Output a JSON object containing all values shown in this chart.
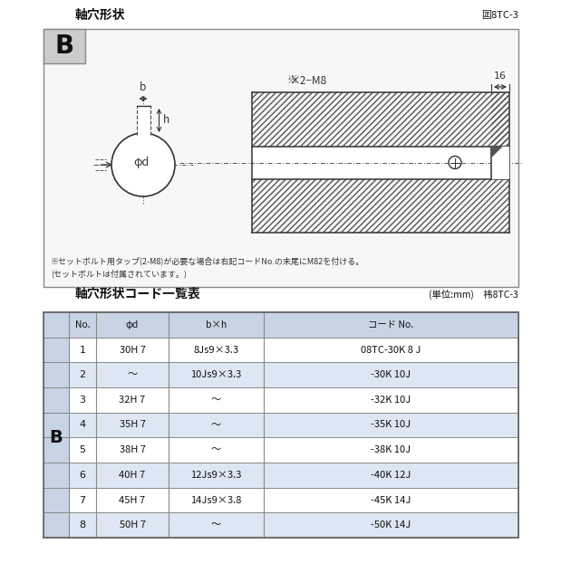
{
  "title_top": "軸穴形状",
  "fig_label_top": "囸8TC-3",
  "title_bottom": "軸穴形状コード一覧表",
  "unit_label": "(単位:mm)　袆8TC-3",
  "note1": "※セットボルト用タップ(2-M8)が必要な場合は右記コードNo.の末尾にM82を付ける。",
  "note2": "(セットボルトは付属されています。)",
  "table_headers": [
    "No.",
    "φd",
    "b×h",
    "コード No."
  ],
  "table_rows": [
    [
      "1",
      "30H 7",
      "8Js9×3.3",
      "08TC-30K 8 J"
    ],
    [
      "2",
      "〜",
      "10Js9×3.3",
      "-30K 10J"
    ],
    [
      "3",
      "32H 7",
      "〜",
      "-32K 10J"
    ],
    [
      "4",
      "35H 7",
      "〜",
      "-35K 10J"
    ],
    [
      "5",
      "38H 7",
      "〜",
      "-38K 10J"
    ],
    [
      "6",
      "40H 7",
      "12Js9×3.3",
      "-40K 12J"
    ],
    [
      "7",
      "45H 7",
      "14Js9×3.8",
      "-45K 14J"
    ],
    [
      "8",
      "50H 7",
      "〜",
      "-50K 14J"
    ]
  ],
  "b_label": "B"
}
